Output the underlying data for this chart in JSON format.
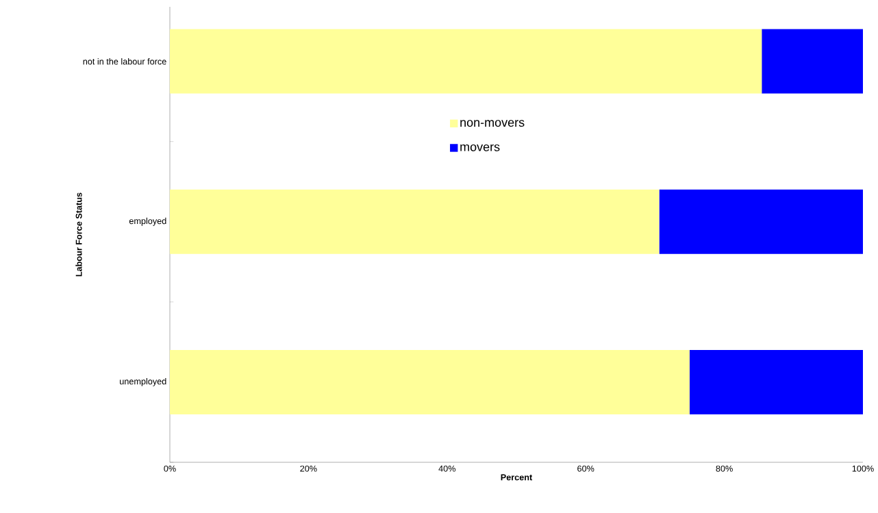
{
  "chart_data": {
    "type": "bar",
    "orientation": "horizontal",
    "stacked": true,
    "xlabel": "Percent",
    "ylabel": "Labour Force Status",
    "categories": [
      "not in the labour force",
      "employed",
      "unemployed"
    ],
    "series": [
      {
        "name": "non-movers",
        "color": "#ffff99",
        "values": [
          85.4,
          70.6,
          75.0
        ]
      },
      {
        "name": "movers",
        "color": "#0000ff",
        "values": [
          14.6,
          29.4,
          25.0
        ]
      }
    ],
    "xlim": [
      0,
      100
    ],
    "xticks": [
      {
        "value": 0,
        "label": "0%"
      },
      {
        "value": 20,
        "label": "20%"
      },
      {
        "value": 40,
        "label": "40%"
      },
      {
        "value": 60,
        "label": "60%"
      },
      {
        "value": 80,
        "label": "80%"
      },
      {
        "value": 100,
        "label": "100%"
      }
    ],
    "grid": false,
    "legend": "top"
  }
}
